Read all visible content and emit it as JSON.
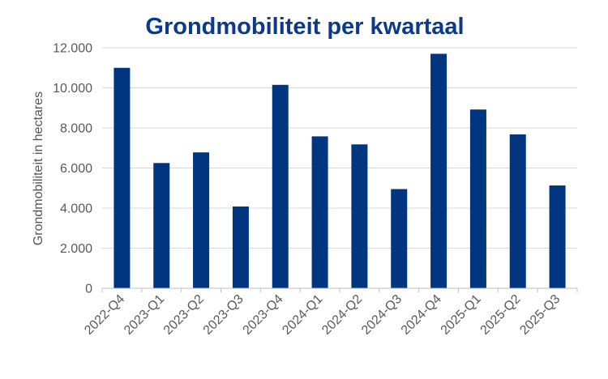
{
  "chart_data": {
    "type": "bar",
    "title": "Grondmobiliteit per kwartaal",
    "xlabel": "",
    "ylabel": "Grondmobiliteit in hectares",
    "categories": [
      "2022-Q4",
      "2023-Q1",
      "2023-Q2",
      "2023-Q3",
      "2023-Q4",
      "2024-Q1",
      "2024-Q2",
      "2024-Q3",
      "2024-Q4",
      "2025-Q1",
      "2025-Q2",
      "2025-Q3"
    ],
    "series": [
      {
        "name": "Grondmobiliteit",
        "values": [
          11000,
          6250,
          6780,
          4080,
          10150,
          7580,
          7180,
          4950,
          11700,
          8920,
          7680,
          5130
        ]
      }
    ],
    "ylim": [
      0,
      12000
    ],
    "yticks": [
      0,
      2000,
      4000,
      6000,
      8000,
      10000,
      12000
    ],
    "ytick_labels": [
      "0",
      "2.000",
      "4.000",
      "6.000",
      "8.000",
      "10.000",
      "12.000"
    ],
    "grid": true,
    "legend": "none",
    "colors": {
      "bar": "#003580",
      "title": "#0b3a8c"
    }
  }
}
